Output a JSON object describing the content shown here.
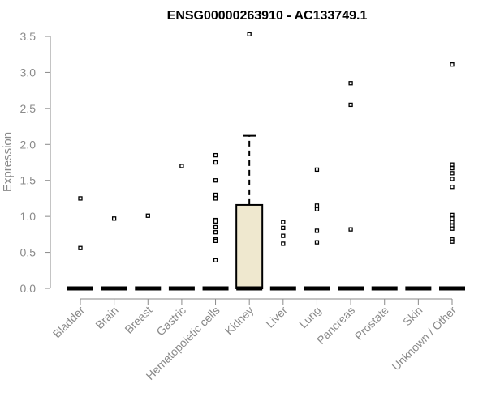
{
  "chart_data": {
    "type": "box",
    "title": "ENSG00000263910 - AC133749.1",
    "xlabel": "",
    "ylabel": "Expression",
    "ylim": [
      0,
      3.5
    ],
    "yticks": [
      "0.0",
      "0.5",
      "1.0",
      "1.5",
      "2.0",
      "2.5",
      "3.0",
      "3.5"
    ],
    "box_fill": "#efe8cf",
    "categories": [
      "Bladder",
      "Brain",
      "Breast",
      "Gastric",
      "Hematopoietic cells",
      "Kidney",
      "Liver",
      "Lung",
      "Pancreas",
      "Prostate",
      "Skin",
      "Unknown / Other"
    ],
    "boxes": [
      {
        "category": "Bladder",
        "q1": 0,
        "median": 0,
        "q3": 0,
        "whisker_low": 0,
        "whisker_high": 0,
        "outliers": [
          1.25,
          0.56
        ]
      },
      {
        "category": "Brain",
        "q1": 0,
        "median": 0,
        "q3": 0,
        "whisker_low": 0,
        "whisker_high": 0,
        "outliers": [
          0.97
        ]
      },
      {
        "category": "Breast",
        "q1": 0,
        "median": 0,
        "q3": 0,
        "whisker_low": 0,
        "whisker_high": 0,
        "outliers": [
          1.01
        ]
      },
      {
        "category": "Gastric",
        "q1": 0,
        "median": 0,
        "q3": 0,
        "whisker_low": 0,
        "whisker_high": 0,
        "outliers": [
          1.7
        ]
      },
      {
        "category": "Hematopoietic cells",
        "q1": 0,
        "median": 0,
        "q3": 0,
        "whisker_low": 0,
        "whisker_high": 0,
        "outliers": [
          1.85,
          1.75,
          1.5,
          1.3,
          1.25,
          0.95,
          0.93,
          0.85,
          0.78,
          0.68,
          0.66,
          0.39
        ]
      },
      {
        "category": "Kidney",
        "q1": 0,
        "median": 0,
        "q3": 1.16,
        "whisker_low": 0,
        "whisker_high": 2.12,
        "outliers": [
          3.53
        ]
      },
      {
        "category": "Liver",
        "q1": 0,
        "median": 0,
        "q3": 0,
        "whisker_low": 0,
        "whisker_high": 0,
        "outliers": [
          0.92,
          0.84,
          0.73,
          0.62
        ]
      },
      {
        "category": "Lung",
        "q1": 0,
        "median": 0,
        "q3": 0,
        "whisker_low": 0,
        "whisker_high": 0,
        "outliers": [
          1.65,
          1.15,
          1.1,
          0.8,
          0.64
        ]
      },
      {
        "category": "Pancreas",
        "q1": 0,
        "median": 0,
        "q3": 0,
        "whisker_low": 0,
        "whisker_high": 0,
        "outliers": [
          2.85,
          2.55,
          0.82
        ]
      },
      {
        "category": "Prostate",
        "q1": 0,
        "median": 0,
        "q3": 0,
        "whisker_low": 0,
        "whisker_high": 0,
        "outliers": []
      },
      {
        "category": "Skin",
        "q1": 0,
        "median": 0,
        "q3": 0,
        "whisker_low": 0,
        "whisker_high": 0,
        "outliers": []
      },
      {
        "category": "Unknown / Other",
        "q1": 0,
        "median": 0,
        "q3": 0,
        "whisker_low": 0,
        "whisker_high": 0,
        "outliers": [
          3.11,
          1.72,
          1.67,
          1.6,
          1.52,
          1.41,
          1.02,
          0.97,
          0.92,
          0.87,
          0.83,
          0.68,
          0.65
        ]
      }
    ]
  }
}
